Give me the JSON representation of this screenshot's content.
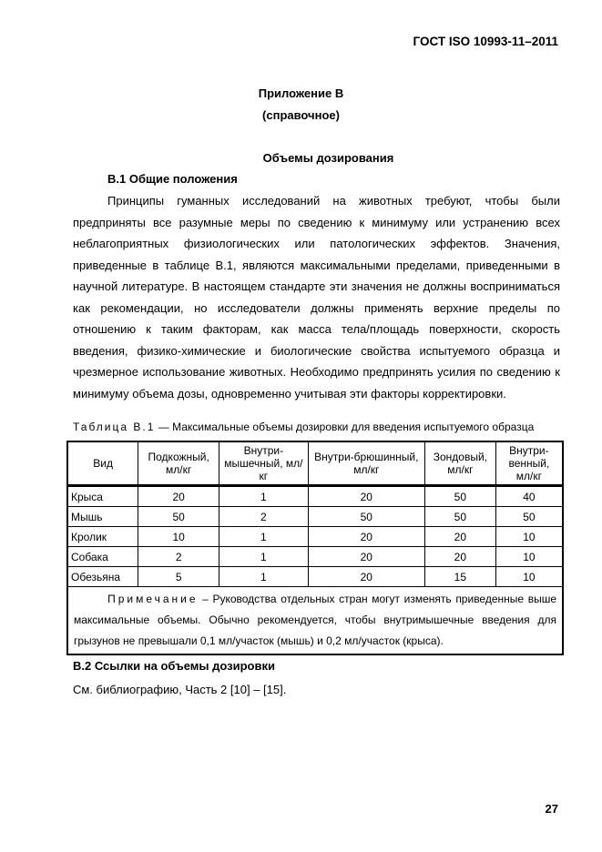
{
  "header": "ГОСТ ISO 10993-11–2011",
  "annex_title": "Приложение В",
  "annex_type": "(справочное)",
  "section_title": "Объемы дозирования",
  "b1_heading": "В.1 Общие положения",
  "b1_text": "Принципы гуманных исследований на животных требуют, чтобы были предприняты все разумные меры по сведению к минимуму или устранению всех неблагоприятных физиологических или патологических эффектов. Значения, приведенные в таблице В.1, являются максимальными пределами, приведенными в научной литературе. В настоящем стандарте эти значения не должны восприниматься как рекомендации, но исследователи должны применять верхние пределы по отношению к таким факторам, как масса тела/площадь поверхности, скорость введения, физико-химические и биологические свойства испытуемого образца и чрезмерное использование животных. Необходимо предпринять усилия по сведению к минимуму объема дозы, одновременно учитывая эти факторы корректировки.",
  "table": {
    "caption_label": "Таблица В.1",
    "caption_text": " — Максимальные объемы дозировки для введения испытуемого образца",
    "headers": [
      "Вид",
      "Подкожный, мл/кг",
      "Внутри-мышечный, мл/кг",
      "Внутри-брюшинный, мл/кг",
      "Зондовый, мл/кг",
      "Внутри-венный, мл/кг"
    ],
    "rows": [
      [
        "Крыса",
        "20",
        "1",
        "20",
        "50",
        "40"
      ],
      [
        "Мышь",
        "50",
        "2",
        "50",
        "50",
        "50"
      ],
      [
        "Кролик",
        "10",
        "1",
        "20",
        "20",
        "10"
      ],
      [
        "Собака",
        "2",
        "1",
        "20",
        "20",
        "10"
      ],
      [
        "Обезьяна",
        "5",
        "1",
        "20",
        "15",
        "10"
      ]
    ],
    "note_label": "Примечание",
    "note_text": " – Руководства отдельных стран могут изменять приведенные выше максимальные объемы. Обычно рекомендуется, чтобы внутримышечные введения для грызунов не превышали 0,1 мл/участок (мышь) и 0,2 мл/участок (крыса)."
  },
  "b2_heading": "В.2 Ссылки на объемы дозировки",
  "b2_text": "См. библиографию, Часть 2 [10] – [15].",
  "page_number": "27"
}
